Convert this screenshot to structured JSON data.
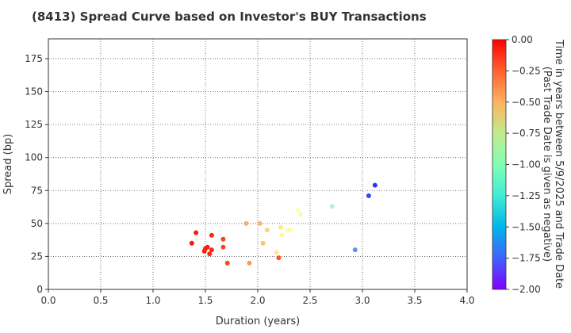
{
  "chart_data": {
    "type": "scatter",
    "title": "(8413)   Spread Curve based on Investor's BUY Transactions",
    "xlabel": "Duration (years)",
    "ylabel": "Spread (bp)",
    "xlim": [
      0,
      4
    ],
    "ylim": [
      0,
      190
    ],
    "xticks": [
      "0.0",
      "0.5",
      "1.0",
      "1.5",
      "2.0",
      "2.5",
      "3.0",
      "3.5",
      "4.0"
    ],
    "yticks": [
      "0",
      "25",
      "50",
      "75",
      "100",
      "125",
      "150",
      "175"
    ],
    "grid": true,
    "colorbar": {
      "label_lines": [
        "Time in years between 5/9/2025 and Trade Date",
        "(Past Trade Date is given as negative)"
      ],
      "range": [
        -2.0,
        0.0
      ],
      "ticks": [
        "0.00",
        "−0.25",
        "−0.50",
        "−0.75",
        "−1.00",
        "−1.25",
        "−1.50",
        "−1.75",
        "−2.00"
      ],
      "colormap": "rainbow"
    },
    "points": [
      {
        "x": 1.37,
        "y": 35,
        "c": -0.05
      },
      {
        "x": 1.41,
        "y": 43,
        "c": -0.06
      },
      {
        "x": 1.49,
        "y": 29,
        "c": -0.07
      },
      {
        "x": 1.5,
        "y": 31,
        "c": -0.08
      },
      {
        "x": 1.52,
        "y": 32,
        "c": -0.08
      },
      {
        "x": 1.54,
        "y": 27,
        "c": -0.09
      },
      {
        "x": 1.56,
        "y": 30,
        "c": -0.1
      },
      {
        "x": 1.56,
        "y": 41,
        "c": -0.09
      },
      {
        "x": 1.67,
        "y": 38,
        "c": -0.16
      },
      {
        "x": 1.67,
        "y": 32,
        "c": -0.17
      },
      {
        "x": 1.71,
        "y": 20,
        "c": -0.18
      },
      {
        "x": 1.89,
        "y": 50,
        "c": -0.48
      },
      {
        "x": 1.92,
        "y": 20,
        "c": -0.42
      },
      {
        "x": 2.02,
        "y": 50,
        "c": -0.5
      },
      {
        "x": 2.05,
        "y": 35,
        "c": -0.55
      },
      {
        "x": 2.09,
        "y": 45,
        "c": -0.62
      },
      {
        "x": 2.18,
        "y": 28,
        "c": -0.75
      },
      {
        "x": 2.2,
        "y": 24,
        "c": -0.2
      },
      {
        "x": 2.22,
        "y": 47,
        "c": -0.72
      },
      {
        "x": 2.23,
        "y": 41,
        "c": -0.82
      },
      {
        "x": 2.29,
        "y": 45,
        "c": -0.86
      },
      {
        "x": 2.31,
        "y": 45,
        "c": -0.88
      },
      {
        "x": 2.38,
        "y": 60,
        "c": -1.0
      },
      {
        "x": 2.41,
        "y": 57,
        "c": -1.05
      },
      {
        "x": 2.71,
        "y": 63,
        "c": -1.25
      },
      {
        "x": 2.93,
        "y": 30,
        "c": -1.62
      },
      {
        "x": 3.06,
        "y": 71,
        "c": -1.82
      },
      {
        "x": 3.12,
        "y": 79,
        "c": -1.86
      }
    ]
  }
}
